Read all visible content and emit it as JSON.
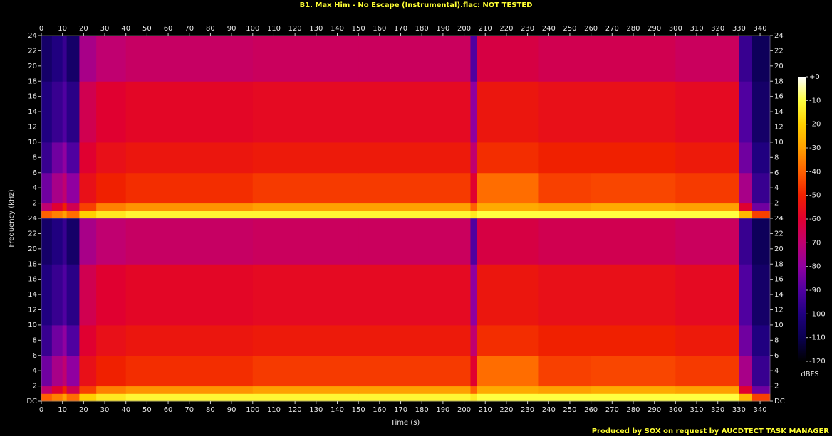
{
  "chart_data": {
    "type": "heatmap",
    "title": "B1. Max Him - No Escape (Instrumental).flac: NOT TESTED",
    "xlabel": "Time (s)",
    "ylabel": "Frequency (kHz)",
    "footer": "Produced by SOX on request by AUCDTECT TASK MANAGER",
    "colorbar_label": "dBFS",
    "xlim": [
      0,
      344.7
    ],
    "xticks": [
      0,
      10,
      20,
      30,
      40,
      50,
      60,
      70,
      80,
      90,
      100,
      110,
      120,
      130,
      140,
      150,
      160,
      170,
      180,
      190,
      200,
      210,
      220,
      230,
      240,
      250,
      260,
      270,
      280,
      290,
      300,
      310,
      320,
      330,
      340
    ],
    "ylim": [
      0,
      24
    ],
    "x_bins": [
      0,
      5,
      10,
      12,
      18,
      26,
      40,
      100,
      150,
      203,
      206,
      235,
      260,
      300,
      330,
      336,
      344.7
    ],
    "y_bins": [
      0,
      1,
      2,
      6,
      10,
      18,
      24
    ],
    "zlim": [
      -120,
      0
    ],
    "zticks": [
      {
        "value": 0,
        "label": "+0"
      },
      -10,
      -20,
      -30,
      -40,
      -50,
      -60,
      -70,
      -80,
      -90,
      -100,
      -110,
      -120
    ],
    "colormap": [
      "#000000",
      "#0a0050",
      "#200080",
      "#5000a0",
      "#9000a0",
      "#c00070",
      "#e00030",
      "#f02000",
      "#ff6000",
      "#ffa000",
      "#ffd000",
      "#ffff40",
      "#ffffff"
    ],
    "channels": [
      {
        "yticks": [
          2,
          4,
          6,
          8,
          10,
          12,
          14,
          16,
          18,
          20,
          22,
          24
        ],
        "values": [
          [
            -40,
            -35,
            -30,
            -38,
            -20,
            -15,
            -12,
            -12,
            -12,
            -15,
            -10,
            -10,
            -10,
            -10,
            -25,
            -45
          ],
          [
            -70,
            -60,
            -50,
            -65,
            -45,
            -35,
            -32,
            -30,
            -30,
            -40,
            -28,
            -30,
            -28,
            -30,
            -60,
            -85
          ],
          [
            -85,
            -75,
            -70,
            -80,
            -55,
            -50,
            -48,
            -46,
            -46,
            -60,
            -38,
            -45,
            -44,
            -46,
            -75,
            -95
          ],
          [
            -95,
            -85,
            -80,
            -90,
            -60,
            -55,
            -53,
            -52,
            -52,
            -70,
            -48,
            -50,
            -50,
            -52,
            -85,
            -100
          ],
          [
            -100,
            -95,
            -90,
            -98,
            -65,
            -60,
            -58,
            -57,
            -57,
            -80,
            -53,
            -55,
            -55,
            -57,
            -90,
            -105
          ],
          [
            -105,
            -100,
            -95,
            -105,
            -75,
            -70,
            -68,
            -67,
            -67,
            -90,
            -63,
            -65,
            -65,
            -67,
            -95,
            -108
          ]
        ]
      },
      {
        "yticks": [
          {
            "value": 0,
            "label": "DC"
          },
          2,
          4,
          6,
          8,
          10,
          12,
          14,
          16,
          18,
          20,
          22,
          24
        ],
        "values": [
          [
            -40,
            -35,
            -30,
            -38,
            -20,
            -15,
            -12,
            -12,
            -12,
            -15,
            -10,
            -10,
            -10,
            -10,
            -25,
            -45
          ],
          [
            -70,
            -60,
            -50,
            -65,
            -45,
            -35,
            -32,
            -30,
            -30,
            -40,
            -28,
            -30,
            -28,
            -30,
            -60,
            -85
          ],
          [
            -85,
            -75,
            -70,
            -80,
            -55,
            -50,
            -48,
            -46,
            -46,
            -60,
            -38,
            -45,
            -44,
            -46,
            -75,
            -95
          ],
          [
            -95,
            -85,
            -80,
            -90,
            -60,
            -55,
            -53,
            -52,
            -52,
            -70,
            -48,
            -50,
            -50,
            -52,
            -85,
            -100
          ],
          [
            -100,
            -95,
            -90,
            -98,
            -65,
            -60,
            -58,
            -57,
            -57,
            -80,
            -53,
            -55,
            -55,
            -57,
            -90,
            -105
          ],
          [
            -105,
            -100,
            -95,
            -105,
            -75,
            -70,
            -68,
            -67,
            -67,
            -90,
            -63,
            -65,
            -65,
            -67,
            -95,
            -108
          ]
        ]
      }
    ]
  }
}
